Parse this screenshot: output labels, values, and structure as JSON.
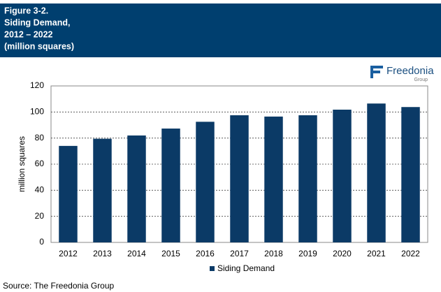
{
  "header": {
    "lines": [
      "Figure 3-2.",
      "Siding Demand,",
      "2012 – 2022",
      "(million squares)"
    ]
  },
  "logo": {
    "name": "Freedonia",
    "sub": "Group"
  },
  "chart_data": {
    "type": "bar",
    "y_label": "million squares",
    "categories": [
      "2012",
      "2013",
      "2014",
      "2015",
      "2016",
      "2017",
      "2018",
      "2019",
      "2020",
      "2021",
      "2022"
    ],
    "series": [
      {
        "name": "Siding Demand",
        "color": "#0b3a66",
        "values": [
          74,
          79.5,
          82,
          87.3,
          92.5,
          97.5,
          96.5,
          97.5,
          101.8,
          106.5,
          103.8
        ]
      }
    ],
    "ylim": [
      0,
      120
    ],
    "yticks": [
      0,
      20,
      40,
      60,
      80,
      100,
      120
    ],
    "grid": true,
    "legend": "bottom"
  },
  "source": "Source: The Freedonia Group"
}
